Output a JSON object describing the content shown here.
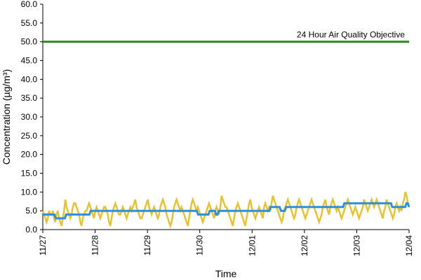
{
  "chart_data": {
    "type": "line",
    "xlabel": "Time",
    "ylabel": "Concentration (µg/m³)",
    "ylim": [
      0,
      60
    ],
    "yticks": [
      "0.0",
      "5.0",
      "10.0",
      "15.0",
      "20.0",
      "25.0",
      "30.0",
      "35.0",
      "40.0",
      "45.0",
      "50.0",
      "55.0",
      "60.0"
    ],
    "xticks": [
      "11/27",
      "11/28",
      "11/29",
      "11/30",
      "12/01",
      "12/02",
      "12/03",
      "12/04"
    ],
    "grid": false,
    "colors": {
      "hourly": "#e8c22e",
      "rolling": "#2f8fd8",
      "objective": "#2e8b22"
    },
    "annotation": "24 Hour Air Quality Objective",
    "objective_value": 50,
    "hourly_values": [
      5,
      4,
      3,
      2,
      3,
      5,
      4,
      4,
      5,
      3,
      2,
      4,
      5,
      3,
      2,
      1,
      3,
      5,
      8,
      6,
      5,
      4,
      3,
      4,
      6,
      7,
      7,
      6,
      5,
      4,
      2,
      1,
      3,
      4,
      5,
      5,
      6,
      7,
      6,
      5,
      4,
      3,
      5,
      6,
      5,
      4,
      3,
      4,
      5,
      6,
      6,
      5,
      4,
      2,
      1,
      3,
      5,
      6,
      7,
      6,
      5,
      4,
      4,
      5,
      6,
      5,
      4,
      3,
      4,
      5,
      6,
      5,
      6,
      7,
      8,
      6,
      5,
      4,
      3,
      3,
      4,
      5,
      6,
      7,
      8,
      6,
      5,
      4,
      5,
      6,
      5,
      4,
      3,
      4,
      6,
      7,
      8,
      7,
      6,
      4,
      3,
      2,
      1,
      2,
      4,
      6,
      7,
      8,
      7,
      6,
      5,
      6,
      5,
      4,
      3,
      2,
      1,
      3,
      5,
      7,
      8,
      7,
      6,
      5,
      6,
      5,
      4,
      3,
      2,
      3,
      4,
      5,
      6,
      7,
      6,
      5,
      4,
      3,
      5,
      6,
      5,
      4,
      6,
      9,
      8,
      7,
      6,
      6,
      5,
      4,
      3,
      2,
      1,
      3,
      5,
      6,
      7,
      6,
      5,
      4,
      3,
      2,
      1,
      3,
      5,
      7,
      8,
      6,
      5,
      4,
      3,
      4,
      5,
      6,
      5,
      4,
      3,
      6,
      7,
      6,
      5,
      6,
      5,
      7,
      9,
      8,
      7,
      6,
      5,
      4,
      3,
      2,
      3,
      5,
      6,
      7,
      8,
      7,
      6,
      5,
      4,
      3,
      4,
      6,
      7,
      8,
      7,
      6,
      5,
      4,
      3,
      4,
      5,
      6,
      7,
      8,
      7,
      6,
      5,
      4,
      3,
      2,
      3,
      4,
      6,
      7,
      8,
      6,
      5,
      4,
      6,
      7,
      8,
      7,
      6,
      5,
      6,
      5,
      4,
      3,
      4,
      5,
      6,
      7,
      8,
      7,
      6,
      5,
      4,
      5,
      6,
      5,
      4,
      3,
      4,
      5,
      6,
      8,
      7,
      6,
      5,
      6,
      7,
      8,
      7,
      6,
      7,
      8,
      7,
      6,
      5,
      4,
      3,
      5,
      6,
      8,
      7,
      6,
      5,
      4,
      3,
      4,
      6,
      7,
      6,
      5,
      6,
      5,
      7,
      8,
      10,
      9,
      7,
      6
    ],
    "rolling_values": [
      4,
      4,
      4,
      4,
      4,
      4,
      4,
      4,
      4,
      4,
      3,
      3,
      3,
      3,
      3,
      3,
      3,
      3,
      4,
      4,
      4,
      4,
      4,
      4,
      4,
      4,
      4,
      4,
      4,
      4,
      4,
      4,
      4,
      4,
      4,
      4,
      4,
      5,
      5,
      5,
      5,
      5,
      5,
      5,
      5,
      5,
      5,
      5,
      5,
      5,
      5,
      5,
      5,
      5,
      5,
      5,
      5,
      5,
      5,
      5,
      5,
      5,
      5,
      5,
      5,
      5,
      5,
      5,
      5,
      5,
      5,
      5,
      5,
      5,
      5,
      5,
      5,
      5,
      5,
      5,
      5,
      5,
      5,
      5,
      5,
      5,
      5,
      5,
      5,
      5,
      5,
      5,
      5,
      5,
      5,
      5,
      5,
      5,
      5,
      5,
      5,
      5,
      5,
      5,
      5,
      5,
      5,
      5,
      5,
      5,
      5,
      5,
      5,
      5,
      5,
      5,
      5,
      5,
      5,
      5,
      4,
      4,
      4,
      4,
      4,
      4,
      4,
      4,
      4,
      5,
      5,
      5,
      5,
      5,
      4,
      4,
      5,
      5,
      5,
      5,
      5,
      5,
      5,
      5,
      5,
      5,
      5,
      5,
      5,
      5,
      5,
      5,
      5,
      5,
      5,
      5,
      5,
      5,
      5,
      5,
      5,
      5,
      5,
      5,
      5,
      5,
      5,
      5,
      5,
      5,
      5,
      5,
      5,
      5,
      5,
      5,
      6,
      6,
      6,
      6,
      6,
      6,
      6,
      6,
      5,
      5,
      5,
      5,
      6,
      6,
      6,
      6,
      6,
      6,
      6,
      6,
      6,
      6,
      6,
      6,
      6,
      6,
      6,
      6,
      6,
      6,
      6,
      6,
      6,
      6,
      6,
      6,
      6,
      6,
      6,
      6,
      6,
      6,
      6,
      6,
      6,
      6,
      6,
      6,
      6,
      6,
      6,
      6,
      6,
      6,
      6,
      6,
      6,
      7,
      7,
      7,
      7,
      7,
      7,
      7,
      7,
      7,
      7,
      7,
      7,
      7,
      7,
      7,
      7,
      7,
      7,
      7,
      7,
      7,
      7,
      7,
      7,
      7,
      7,
      7,
      7,
      7,
      7,
      7,
      7,
      7,
      7,
      7,
      7,
      7,
      6,
      6,
      6,
      6,
      6,
      6,
      6,
      6,
      6,
      6,
      6,
      7,
      7,
      6
    ]
  }
}
